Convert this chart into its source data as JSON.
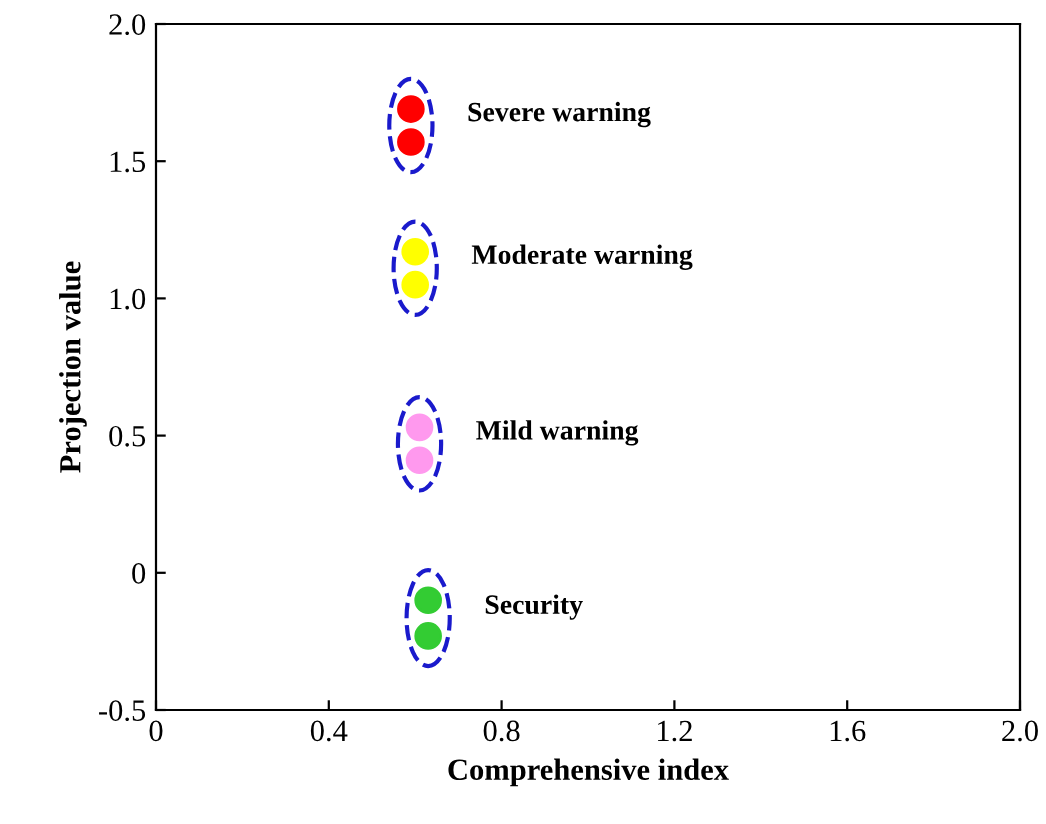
{
  "chart_data": {
    "type": "scatter",
    "xlabel": "Comprehensive index",
    "ylabel": "Projection value",
    "xlim": [
      0,
      2.0
    ],
    "ylim": [
      -0.5,
      2.0
    ],
    "xticks": [
      0,
      0.4,
      0.8,
      1.2,
      1.6,
      {
        "value": 2.0,
        "label": "2.0"
      }
    ],
    "yticks": [
      -0.5,
      0,
      0.5,
      {
        "value": 1.0,
        "label": "1.0"
      },
      1.5,
      {
        "value": 2.0,
        "label": "2.0"
      }
    ],
    "grid": false,
    "marker": "circle",
    "series": [
      {
        "name": "Severe warning",
        "color": "#ff0000",
        "x": [
          0.59,
          0.59
        ],
        "values": [
          1.69,
          1.57
        ]
      },
      {
        "name": "Moderate warning",
        "color": "#ffff00",
        "x": [
          0.6,
          0.6
        ],
        "values": [
          1.17,
          1.05
        ]
      },
      {
        "name": "Mild warning",
        "color": "#ff99ee",
        "x": [
          0.61,
          0.61
        ],
        "values": [
          0.53,
          0.41
        ]
      },
      {
        "name": "Security",
        "color": "#33cc33",
        "x": [
          0.63,
          0.63
        ],
        "values": [
          -0.1,
          -0.23
        ]
      }
    ]
  }
}
